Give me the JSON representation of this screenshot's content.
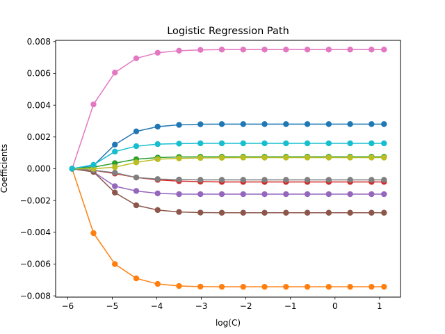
{
  "chart_data": {
    "type": "line",
    "title": "Logistic Regression Path",
    "xlabel": "log(C)",
    "ylabel": "Coefficients",
    "xlim": [
      -6.27,
      1.47
    ],
    "ylim": [
      -0.00808,
      0.00808
    ],
    "xticks": [
      -6,
      -5,
      -4,
      -3,
      -2,
      -1,
      0,
      1
    ],
    "xtick_labels": [
      "−6",
      "−5",
      "−4",
      "−3",
      "−2",
      "−1",
      "0",
      "1"
    ],
    "yticks": [
      -0.008,
      -0.006,
      -0.004,
      -0.002,
      0.0,
      0.002,
      0.004,
      0.006,
      0.008
    ],
    "ytick_labels": [
      "−0.008",
      "−0.006",
      "−0.004",
      "−0.002",
      "0.000",
      "0.002",
      "0.004",
      "0.006",
      "0.008"
    ],
    "grid": false,
    "legend": "none",
    "markers": true,
    "x": [
      -5.9,
      -5.42,
      -4.94,
      -4.46,
      -3.98,
      -3.5,
      -3.02,
      -2.54,
      -2.06,
      -1.58,
      -1.1,
      -0.62,
      -0.14,
      0.34,
      0.82,
      1.1
    ],
    "series": [
      {
        "color": "#1f77b4",
        "values": [
          0.0,
          0.0002,
          0.00152,
          0.00235,
          0.00265,
          0.00276,
          0.0028,
          0.00281,
          0.00281,
          0.00281,
          0.00281,
          0.00281,
          0.00281,
          0.00281,
          0.00281,
          0.00281
        ]
      },
      {
        "color": "#ff7f0e",
        "values": [
          0.0,
          -0.00405,
          -0.006,
          -0.0069,
          -0.00725,
          -0.00738,
          -0.00742,
          -0.00743,
          -0.00743,
          -0.00743,
          -0.00743,
          -0.00743,
          -0.00743,
          -0.00743,
          -0.00743,
          -0.00743
        ]
      },
      {
        "color": "#2ca02c",
        "values": [
          0.0,
          0.0001,
          0.00035,
          0.0006,
          0.0007,
          0.00074,
          0.00075,
          0.00075,
          0.00075,
          0.00075,
          0.00075,
          0.00075,
          0.00075,
          0.00075,
          0.00075,
          0.00075
        ]
      },
      {
        "color": "#d62728",
        "values": [
          0.0,
          -0.0001,
          -0.0003,
          -0.00055,
          -0.0007,
          -0.00078,
          -0.00081,
          -0.00083,
          -0.00083,
          -0.00083,
          -0.00083,
          -0.00083,
          -0.00083,
          -0.00083,
          -0.00083,
          -0.00083
        ]
      },
      {
        "color": "#9467bd",
        "values": [
          0.0,
          -0.0002,
          -0.0011,
          -0.0014,
          -0.00155,
          -0.0016,
          -0.0016,
          -0.0016,
          -0.0016,
          -0.0016,
          -0.0016,
          -0.0016,
          -0.0016,
          -0.0016,
          -0.0016,
          -0.0016
        ]
      },
      {
        "color": "#8c564b",
        "values": [
          0.0,
          -0.0002,
          -0.0015,
          -0.0023,
          -0.0026,
          -0.00272,
          -0.00276,
          -0.00277,
          -0.00277,
          -0.00277,
          -0.00277,
          -0.00277,
          -0.00277,
          -0.00277,
          -0.00277,
          -0.00277
        ]
      },
      {
        "color": "#e377c2",
        "values": [
          0.0,
          0.00405,
          0.00605,
          0.00695,
          0.0073,
          0.00743,
          0.00748,
          0.0075,
          0.0075,
          0.0075,
          0.0075,
          0.0075,
          0.0075,
          0.0075,
          0.0075,
          0.0075
        ]
      },
      {
        "color": "#7f7f7f",
        "values": [
          0.0,
          -0.0001,
          -0.00025,
          -0.00055,
          -0.00065,
          -0.00068,
          -0.0007,
          -0.0007,
          -0.0007,
          -0.0007,
          -0.0007,
          -0.0007,
          -0.0007,
          -0.0007,
          -0.0007,
          -0.0007
        ]
      },
      {
        "color": "#bcbd22",
        "values": [
          0.0,
          0.0,
          0.0001,
          0.0004,
          0.0006,
          0.00065,
          0.00068,
          0.00069,
          0.0007,
          0.0007,
          0.0007,
          0.0007,
          0.0007,
          0.0007,
          0.0007,
          0.0007
        ]
      },
      {
        "color": "#17becf",
        "values": [
          0.0,
          0.00025,
          0.00108,
          0.00142,
          0.00155,
          0.00158,
          0.0016,
          0.0016,
          0.0016,
          0.0016,
          0.0016,
          0.0016,
          0.0016,
          0.0016,
          0.0016,
          0.0016
        ]
      }
    ]
  }
}
